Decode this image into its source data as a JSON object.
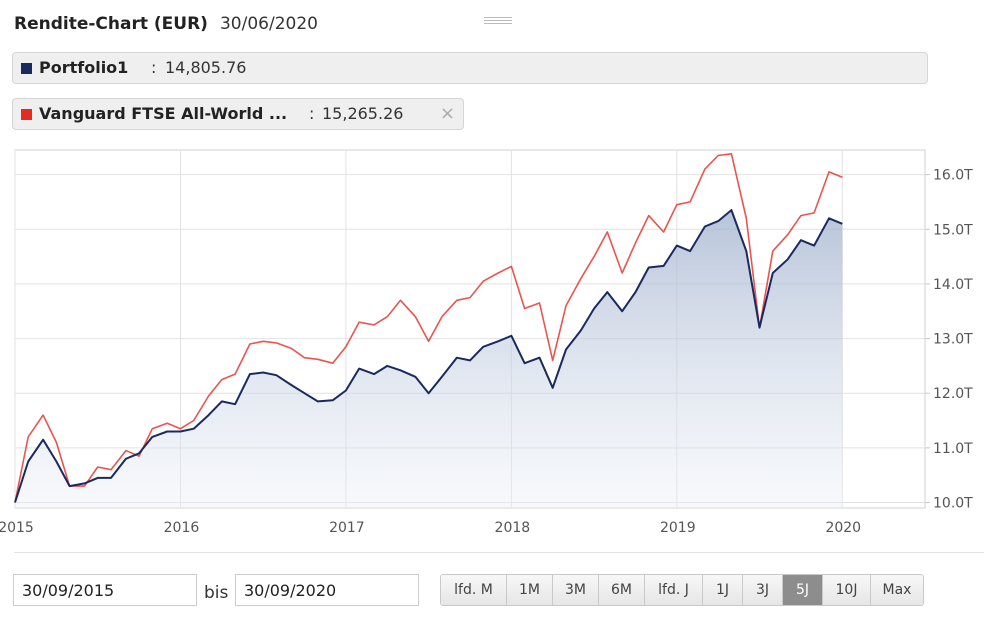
{
  "header": {
    "title": "Rendite-Chart (EUR)",
    "date": "30/06/2020"
  },
  "legend": [
    {
      "name": "Portfolio1",
      "separator": ":",
      "value": "14,805.76",
      "color": "#1b2a5e",
      "closable": false
    },
    {
      "name": "Vanguard FTSE All-World ...",
      "separator": ":",
      "value": "15,265.26",
      "color": "#e32b22",
      "closable": true,
      "close_icon": "×"
    }
  ],
  "controls": {
    "from_date": "30/09/2015",
    "between_label": "bis",
    "to_date": "30/09/2020",
    "ranges": [
      "lfd. M",
      "1M",
      "3M",
      "6M",
      "lfd. J",
      "1J",
      "3J",
      "5J",
      "10J",
      "Max"
    ],
    "active_range": "5J"
  },
  "chart_data": {
    "type": "line",
    "title": "Rendite-Chart (EUR)",
    "xlabel": "",
    "ylabel": "",
    "x_ticks": [
      {
        "t": 2015.0,
        "label": "2015"
      },
      {
        "t": 2016.0,
        "label": "2016"
      },
      {
        "t": 2017.0,
        "label": "2017"
      },
      {
        "t": 2018.0,
        "label": "2018"
      },
      {
        "t": 2019.0,
        "label": "2019"
      },
      {
        "t": 2020.0,
        "label": "2020"
      }
    ],
    "y_ticks": [
      {
        "v": 10000,
        "label": "10.0T"
      },
      {
        "v": 11000,
        "label": "11.0T"
      },
      {
        "v": 12000,
        "label": "12.0T"
      },
      {
        "v": 13000,
        "label": "13.0T"
      },
      {
        "v": 14000,
        "label": "14.0T"
      },
      {
        "v": 15000,
        "label": "15.0T"
      },
      {
        "v": 16000,
        "label": "16.0T"
      }
    ],
    "xlim": [
      2015.0,
      2020.5
    ],
    "ylim": [
      9900,
      16450
    ],
    "series": [
      {
        "name": "Portfolio1",
        "color": "#1b2a5e",
        "area": true,
        "points": [
          [
            2015.0,
            10000
          ],
          [
            2015.08,
            10750
          ],
          [
            2015.17,
            11150
          ],
          [
            2015.25,
            10750
          ],
          [
            2015.33,
            10300
          ],
          [
            2015.42,
            10350
          ],
          [
            2015.5,
            10450
          ],
          [
            2015.58,
            10450
          ],
          [
            2015.67,
            10800
          ],
          [
            2015.75,
            10900
          ],
          [
            2015.83,
            11200
          ],
          [
            2015.92,
            11300
          ],
          [
            2016.0,
            11300
          ],
          [
            2016.08,
            11350
          ],
          [
            2016.17,
            11600
          ],
          [
            2016.25,
            11850
          ],
          [
            2016.33,
            11800
          ],
          [
            2016.42,
            12350
          ],
          [
            2016.5,
            12380
          ],
          [
            2016.58,
            12330
          ],
          [
            2016.67,
            12150
          ],
          [
            2016.75,
            12000
          ],
          [
            2016.83,
            11850
          ],
          [
            2016.92,
            11870
          ],
          [
            2017.0,
            12050
          ],
          [
            2017.08,
            12450
          ],
          [
            2017.17,
            12350
          ],
          [
            2017.25,
            12500
          ],
          [
            2017.33,
            12420
          ],
          [
            2017.42,
            12300
          ],
          [
            2017.5,
            12000
          ],
          [
            2017.58,
            12300
          ],
          [
            2017.67,
            12650
          ],
          [
            2017.75,
            12600
          ],
          [
            2017.83,
            12850
          ],
          [
            2017.92,
            12950
          ],
          [
            2018.0,
            13050
          ],
          [
            2018.08,
            12550
          ],
          [
            2018.17,
            12650
          ],
          [
            2018.25,
            12100
          ],
          [
            2018.33,
            12800
          ],
          [
            2018.42,
            13150
          ],
          [
            2018.5,
            13550
          ],
          [
            2018.58,
            13850
          ],
          [
            2018.67,
            13500
          ],
          [
            2018.75,
            13850
          ],
          [
            2018.83,
            14300
          ],
          [
            2018.92,
            14330
          ],
          [
            2019.0,
            14700
          ],
          [
            2019.08,
            14600
          ],
          [
            2019.17,
            15050
          ],
          [
            2019.25,
            15150
          ],
          [
            2019.33,
            15350
          ],
          [
            2019.42,
            14600
          ],
          [
            2019.5,
            13200
          ],
          [
            2019.58,
            14200
          ],
          [
            2019.67,
            14450
          ],
          [
            2019.75,
            14800
          ],
          [
            2019.83,
            14700
          ],
          [
            2019.92,
            15200
          ],
          [
            2020.0,
            15100
          ]
        ]
      },
      {
        "name": "Vanguard FTSE All-World ...",
        "color": "#e32b22",
        "area": false,
        "points": [
          [
            2015.0,
            10000
          ],
          [
            2015.08,
            11200
          ],
          [
            2015.17,
            11600
          ],
          [
            2015.25,
            11100
          ],
          [
            2015.33,
            10300
          ],
          [
            2015.42,
            10300
          ],
          [
            2015.5,
            10650
          ],
          [
            2015.58,
            10600
          ],
          [
            2015.67,
            10950
          ],
          [
            2015.75,
            10850
          ],
          [
            2015.83,
            11350
          ],
          [
            2015.92,
            11450
          ],
          [
            2016.0,
            11350
          ],
          [
            2016.08,
            11500
          ],
          [
            2016.17,
            11950
          ],
          [
            2016.25,
            12250
          ],
          [
            2016.33,
            12350
          ],
          [
            2016.42,
            12900
          ],
          [
            2016.5,
            12950
          ],
          [
            2016.58,
            12920
          ],
          [
            2016.67,
            12820
          ],
          [
            2016.75,
            12650
          ],
          [
            2016.83,
            12620
          ],
          [
            2016.92,
            12550
          ],
          [
            2017.0,
            12850
          ],
          [
            2017.08,
            13300
          ],
          [
            2017.17,
            13250
          ],
          [
            2017.25,
            13400
          ],
          [
            2017.33,
            13700
          ],
          [
            2017.42,
            13400
          ],
          [
            2017.5,
            12950
          ],
          [
            2017.58,
            13400
          ],
          [
            2017.67,
            13700
          ],
          [
            2017.75,
            13750
          ],
          [
            2017.83,
            14050
          ],
          [
            2017.92,
            14200
          ],
          [
            2018.0,
            14320
          ],
          [
            2018.08,
            13550
          ],
          [
            2018.17,
            13650
          ],
          [
            2018.25,
            12600
          ],
          [
            2018.33,
            13600
          ],
          [
            2018.42,
            14100
          ],
          [
            2018.5,
            14500
          ],
          [
            2018.58,
            14950
          ],
          [
            2018.67,
            14200
          ],
          [
            2018.75,
            14750
          ],
          [
            2018.83,
            15250
          ],
          [
            2018.92,
            14950
          ],
          [
            2019.0,
            15450
          ],
          [
            2019.08,
            15500
          ],
          [
            2019.17,
            16100
          ],
          [
            2019.25,
            16350
          ],
          [
            2019.33,
            16380
          ],
          [
            2019.42,
            15200
          ],
          [
            2019.5,
            13200
          ],
          [
            2019.58,
            14600
          ],
          [
            2019.67,
            14900
          ],
          [
            2019.75,
            15250
          ],
          [
            2019.83,
            15300
          ],
          [
            2019.92,
            16050
          ],
          [
            2020.0,
            15950
          ]
        ]
      }
    ]
  }
}
